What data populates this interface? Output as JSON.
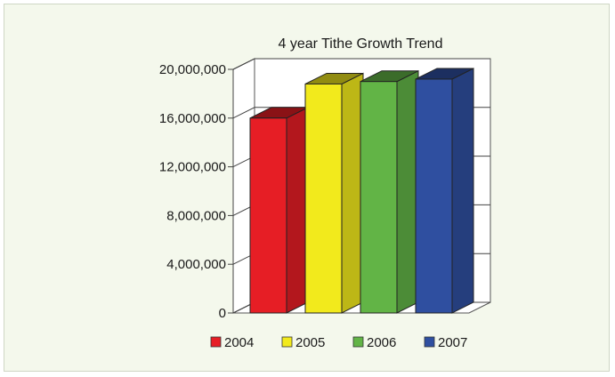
{
  "chart_data": {
    "type": "bar",
    "title": "4 year Tithe Growth Trend",
    "xlabel": "",
    "ylabel": "",
    "categories": [
      "2004",
      "2005",
      "2006",
      "2007"
    ],
    "values": [
      16000000,
      18800000,
      19000000,
      19200000
    ],
    "ylim": [
      0,
      20000000
    ],
    "yticks": [
      "0",
      "4,000,000",
      "8,000,000",
      "12,000,000",
      "16,000,000",
      "20,000,000"
    ],
    "ytick_values": [
      0,
      4000000,
      8000000,
      12000000,
      16000000,
      20000000
    ],
    "grid": true,
    "legend_position": "bottom",
    "three_d": true,
    "colors": [
      "#e61e25",
      "#f2ea1c",
      "#62b446",
      "#2f4fa0"
    ]
  }
}
